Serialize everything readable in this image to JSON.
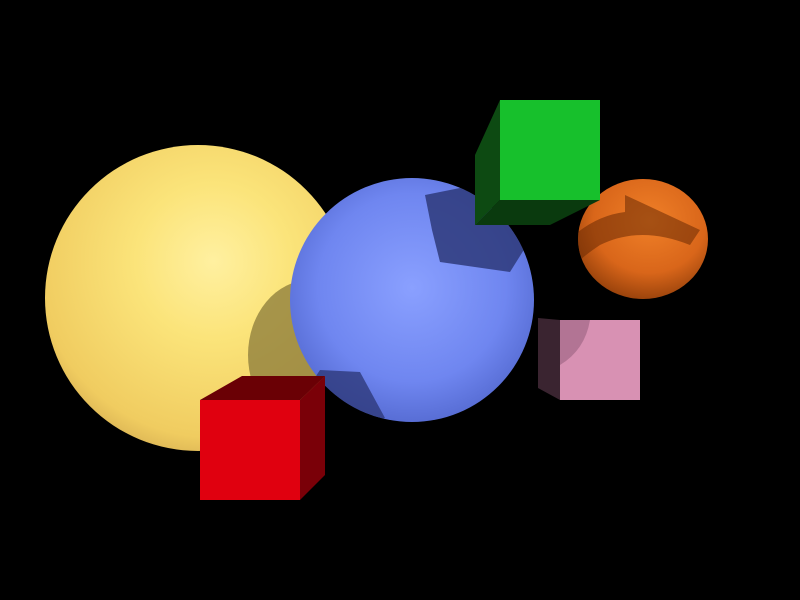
{
  "scene": {
    "background": "#000000",
    "objects": [
      {
        "id": "yellow-sphere",
        "shape": "sphere",
        "color": "#f7d560"
      },
      {
        "id": "blue-sphere",
        "shape": "sphere",
        "color": "#6f86f0"
      },
      {
        "id": "orange-sphere",
        "shape": "sphere",
        "color": "#d9661a"
      },
      {
        "id": "green-cube",
        "shape": "cube",
        "color": "#17c02c"
      },
      {
        "id": "red-cube",
        "shape": "cube",
        "color": "#e0000f"
      },
      {
        "id": "pink-cube",
        "shape": "cube",
        "color": "#d891b3"
      }
    ]
  }
}
